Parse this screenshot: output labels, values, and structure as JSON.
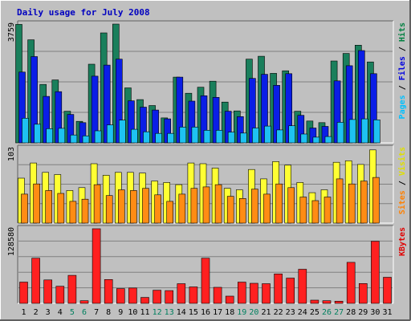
{
  "chart_data": [
    {
      "type": "bar",
      "title": "Daily usage for July 2008",
      "panel": "hits",
      "ymax_label": "3759",
      "side_labels": [
        {
          "text": "Pages",
          "color": "#00c0ff"
        },
        {
          "text": " / ",
          "color": "#000000"
        },
        {
          "text": "Files",
          "color": "#0000e0"
        },
        {
          "text": " / ",
          "color": "#000000"
        },
        {
          "text": "Hits",
          "color": "#008040"
        }
      ],
      "categories": [
        "1",
        "2",
        "3",
        "4",
        "5",
        "6",
        "7",
        "8",
        "9",
        "10",
        "11",
        "12",
        "13",
        "14",
        "15",
        "16",
        "17",
        "18",
        "19",
        "20",
        "21",
        "22",
        "23",
        "24",
        "25",
        "26",
        "27",
        "28",
        "29",
        "30",
        "31"
      ],
      "ylim": [
        0,
        3759
      ],
      "series": [
        {
          "name": "Hits",
          "color": "#1a7f5c",
          "values": [
            3750,
            3260,
            1850,
            1990,
            1000,
            680,
            2490,
            3480,
            3820,
            1740,
            1370,
            1180,
            790,
            2080,
            1570,
            1760,
            1950,
            1290,
            1010,
            2650,
            2740,
            2200,
            2280,
            1000,
            690,
            640,
            2590,
            2830,
            3090,
            2560,
            0
          ]
        },
        {
          "name": "Files",
          "color": "#0a1ee6",
          "values": [
            2240,
            2730,
            1470,
            1620,
            900,
            640,
            2110,
            2460,
            2650,
            1330,
            1130,
            1040,
            760,
            2080,
            1320,
            1490,
            1440,
            1000,
            830,
            2040,
            2170,
            1820,
            2190,
            870,
            470,
            520,
            1960,
            2440,
            2920,
            2190,
            0
          ]
        },
        {
          "name": "Pages",
          "color": "#1ec2f2",
          "values": [
            780,
            590,
            450,
            460,
            250,
            220,
            380,
            570,
            720,
            430,
            350,
            300,
            300,
            500,
            500,
            400,
            400,
            340,
            310,
            470,
            530,
            410,
            540,
            280,
            180,
            200,
            650,
            740,
            760,
            730,
            0
          ]
        }
      ]
    },
    {
      "type": "bar",
      "panel": "visits",
      "ymax_label": "103",
      "side_labels": [
        {
          "text": "Sites",
          "color": "#ff8000"
        },
        {
          "text": " / ",
          "color": "#000000"
        },
        {
          "text": "Visits",
          "color": "#e0e000"
        }
      ],
      "categories": [
        "1",
        "2",
        "3",
        "4",
        "5",
        "6",
        "7",
        "8",
        "9",
        "10",
        "11",
        "12",
        "13",
        "14",
        "15",
        "16",
        "17",
        "18",
        "19",
        "20",
        "21",
        "22",
        "23",
        "24",
        "25",
        "26",
        "27",
        "28",
        "29",
        "30",
        "31"
      ],
      "ylim": [
        0,
        103
      ],
      "series": [
        {
          "name": "Visits",
          "color": "#ffff33",
          "values": [
            62,
            83,
            70,
            67,
            45,
            49,
            82,
            66,
            70,
            70,
            69,
            58,
            56,
            53,
            83,
            82,
            76,
            48,
            46,
            74,
            61,
            85,
            80,
            56,
            42,
            46,
            84,
            86,
            81,
            101,
            0
          ]
        },
        {
          "name": "Sites",
          "color": "#ff8c14",
          "values": [
            40,
            54,
            45,
            41,
            30,
            33,
            53,
            38,
            46,
            45,
            48,
            39,
            30,
            40,
            48,
            50,
            53,
            37,
            34,
            47,
            40,
            54,
            49,
            36,
            31,
            36,
            61,
            54,
            58,
            63,
            0
          ]
        }
      ]
    },
    {
      "type": "bar",
      "panel": "kbytes",
      "ymax_label": "128580",
      "side_labels": [
        {
          "text": "KBytes",
          "color": "#e00000"
        }
      ],
      "categories": [
        "1",
        "2",
        "3",
        "4",
        "5",
        "6",
        "7",
        "8",
        "9",
        "10",
        "11",
        "12",
        "13",
        "14",
        "15",
        "16",
        "17",
        "18",
        "19",
        "20",
        "21",
        "22",
        "23",
        "24",
        "25",
        "26",
        "27",
        "28",
        "29",
        "30",
        "31"
      ],
      "ylim": [
        0,
        128580
      ],
      "series": [
        {
          "name": "KBytes",
          "color": "#ff2020",
          "values": [
            36700,
            77900,
            40400,
            29400,
            48300,
            4500,
            130000,
            41100,
            25500,
            26400,
            10300,
            22700,
            22000,
            33900,
            28400,
            77900,
            27700,
            12500,
            36700,
            34600,
            33900,
            50700,
            43500,
            58800,
            5500,
            4500,
            3800,
            70700,
            34100,
            107000,
            45000
          ]
        }
      ]
    }
  ],
  "weekend_days": [
    "5",
    "6",
    "12",
    "13",
    "19",
    "20",
    "26",
    "27"
  ],
  "colors": {
    "plot_bg": "#c0c0c0",
    "weekday_label": "#000000",
    "weekend_label": "#00805f",
    "title": "#0000c0"
  }
}
